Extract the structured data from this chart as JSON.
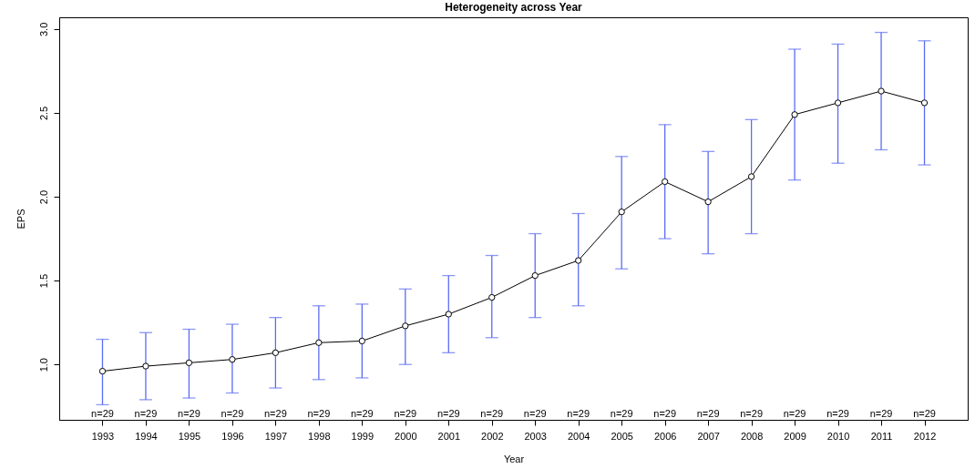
{
  "chart_data": {
    "type": "line",
    "title": "Heterogeneity across Year",
    "xlabel": "Year",
    "ylabel": "EPS",
    "categories": [
      "1993",
      "1994",
      "1995",
      "1996",
      "1997",
      "1998",
      "1999",
      "2000",
      "2001",
      "2002",
      "2003",
      "2004",
      "2005",
      "2006",
      "2007",
      "2008",
      "2009",
      "2010",
      "2011",
      "2012"
    ],
    "series": [
      {
        "color": "#000000",
        "values": [
          0.96,
          0.99,
          1.01,
          1.03,
          1.07,
          1.13,
          1.14,
          1.23,
          1.3,
          1.4,
          1.53,
          1.62,
          1.91,
          2.09,
          1.97,
          2.12,
          2.49,
          2.56,
          2.63,
          2.56
        ],
        "errors": [
          [
            0.76,
            1.15
          ],
          [
            0.79,
            1.19
          ],
          [
            0.8,
            1.21
          ],
          [
            0.83,
            1.24
          ],
          [
            0.86,
            1.28
          ],
          [
            0.91,
            1.35
          ],
          [
            0.92,
            1.36
          ],
          [
            1.0,
            1.45
          ],
          [
            1.07,
            1.53
          ],
          [
            1.16,
            1.65
          ],
          [
            1.28,
            1.78
          ],
          [
            1.35,
            1.9
          ],
          [
            1.57,
            2.24
          ],
          [
            1.75,
            2.43
          ],
          [
            1.66,
            2.27
          ],
          [
            1.78,
            2.46
          ],
          [
            2.1,
            2.88
          ],
          [
            2.2,
            2.91
          ],
          [
            2.28,
            2.98
          ],
          [
            2.19,
            2.93
          ]
        ]
      }
    ],
    "ylim": [
      0.67,
      3.07
    ],
    "yticks": [
      {
        "value": 1,
        "label": "1.0"
      },
      {
        "value": 1.5,
        "label": "1.5"
      },
      {
        "value": 2,
        "label": "2.0"
      },
      {
        "value": 2.5,
        "label": "2.5"
      },
      {
        "value": 3,
        "label": "3.0"
      }
    ],
    "marker": "circle",
    "line_style": "solid",
    "grid": false,
    "annotations": [
      "n=29",
      "n=29",
      "n=29",
      "n=29",
      "n=29",
      "n=29",
      "n=29",
      "n=29",
      "n=29",
      "n=29",
      "n=29",
      "n=29",
      "n=29",
      "n=29",
      "n=29",
      "n=29",
      "n=29",
      "n=29",
      "n=29",
      "n=29"
    ]
  }
}
